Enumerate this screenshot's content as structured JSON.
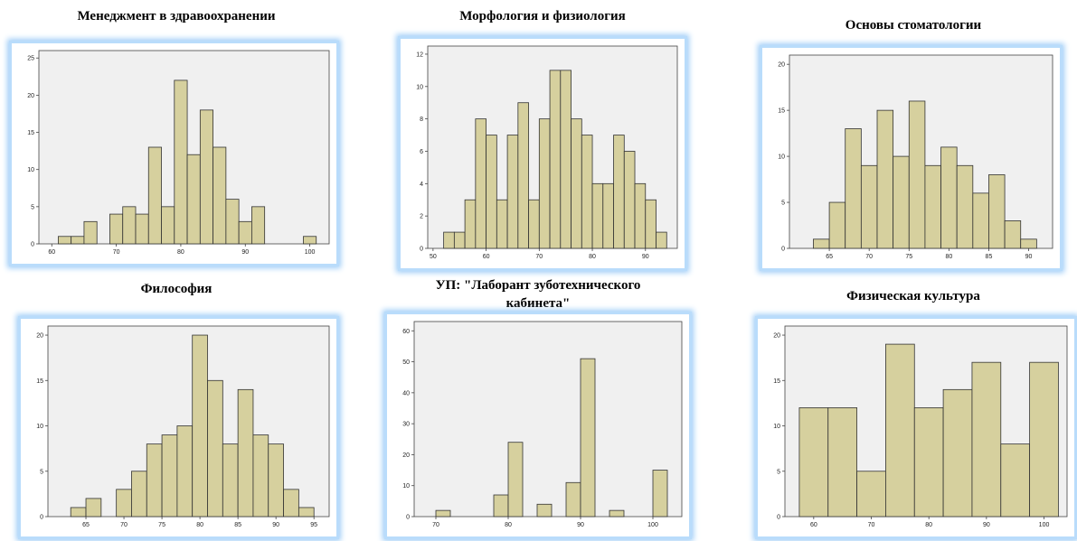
{
  "chart_data": [
    {
      "type": "histogram",
      "title": "Менеджмент в здравоохранении",
      "bins": [
        61,
        63,
        65,
        67,
        69,
        71,
        73,
        75,
        77,
        79,
        81,
        83,
        85,
        87,
        89,
        91,
        93,
        95,
        97,
        99,
        101
      ],
      "values": [
        1,
        1,
        3,
        0,
        4,
        5,
        4,
        13,
        5,
        22,
        12,
        18,
        13,
        6,
        3,
        5,
        0,
        0,
        0,
        1
      ],
      "color": "#d6d09e",
      "xlim": [
        58,
        103
      ],
      "xticks": [
        60,
        70,
        80,
        90,
        100
      ],
      "ylim": [
        0,
        26
      ],
      "yticks": [
        0,
        5,
        10,
        15,
        20,
        25
      ]
    },
    {
      "type": "histogram",
      "title": "Морфология и физиология",
      "bins": [
        52,
        54,
        56,
        58,
        60,
        62,
        64,
        66,
        68,
        70,
        72,
        74,
        76,
        78,
        80,
        82,
        84,
        86,
        88,
        90,
        92,
        94
      ],
      "values": [
        1,
        1,
        3,
        8,
        7,
        3,
        7,
        9,
        3,
        8,
        11,
        11,
        8,
        7,
        4,
        4,
        7,
        6,
        4,
        3,
        1
      ],
      "color": "#d6d09e",
      "xlim": [
        49,
        96
      ],
      "xticks": [
        50,
        60,
        70,
        80,
        90
      ],
      "ylim": [
        0,
        12.5
      ],
      "yticks": [
        0,
        2,
        4,
        6,
        8,
        10,
        12
      ]
    },
    {
      "type": "histogram",
      "title": "Основы стоматологии",
      "bins": [
        63,
        65,
        67,
        69,
        71,
        73,
        75,
        77,
        79,
        81,
        83,
        85,
        87,
        89,
        91
      ],
      "values": [
        1,
        5,
        13,
        9,
        15,
        10,
        16,
        9,
        11,
        9,
        6,
        8,
        3,
        1
      ],
      "color": "#d6d09e",
      "xlim": [
        60,
        93
      ],
      "xticks": [
        65,
        70,
        75,
        80,
        85,
        90
      ],
      "ylim": [
        0,
        21
      ],
      "yticks": [
        0,
        5,
        10,
        15,
        20
      ]
    },
    {
      "type": "histogram",
      "title": "Философия",
      "bins": [
        63,
        65,
        67,
        69,
        71,
        73,
        75,
        77,
        79,
        81,
        83,
        85,
        87,
        89,
        91,
        93,
        95
      ],
      "values": [
        1,
        2,
        0,
        3,
        5,
        8,
        9,
        10,
        20,
        15,
        8,
        14,
        9,
        8,
        3,
        1
      ],
      "color": "#d6d09e",
      "xlim": [
        60,
        97
      ],
      "xticks": [
        65,
        70,
        75,
        80,
        85,
        90,
        95
      ],
      "ylim": [
        0,
        21
      ],
      "yticks": [
        0,
        5,
        10,
        15,
        20
      ]
    },
    {
      "type": "histogram",
      "title": "УП: \"Лаборант зуботехнического кабинета\"",
      "bins": [
        70,
        72,
        74,
        76,
        78,
        80,
        82,
        84,
        86,
        88,
        90,
        92,
        94,
        96,
        98,
        100,
        102
      ],
      "values": [
        2,
        0,
        0,
        0,
        7,
        24,
        0,
        4,
        0,
        11,
        51,
        0,
        2,
        0,
        0,
        15
      ],
      "color": "#d6d09e",
      "xlim": [
        67,
        104
      ],
      "xticks": [
        70,
        80,
        90,
        100
      ],
      "ylim": [
        0,
        63
      ],
      "yticks": [
        0,
        10,
        20,
        30,
        40,
        50,
        60
      ]
    },
    {
      "type": "histogram",
      "title": "Физическая культура",
      "bins": [
        57.5,
        62.5,
        67.5,
        72.5,
        77.5,
        82.5,
        87.5,
        92.5,
        97.5,
        102.5
      ],
      "values": [
        12,
        12,
        5,
        19,
        12,
        14,
        17,
        8,
        17
      ],
      "color": "#d6d09e",
      "xlim": [
        55,
        104
      ],
      "xticks": [
        60,
        70,
        80,
        90,
        100
      ],
      "ylim": [
        0,
        21
      ],
      "yticks": [
        0,
        5,
        10,
        15,
        20
      ]
    }
  ]
}
